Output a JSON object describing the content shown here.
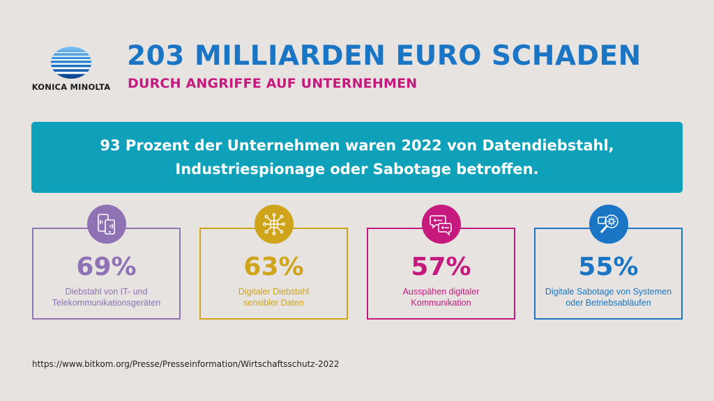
{
  "brand": {
    "name": "KONICA MINOLTA"
  },
  "header": {
    "title": "203 MILLIARDEN EURO SCHADEN",
    "subtitle": "DURCH ANGRIFFE AUF UNTERNEHMEN"
  },
  "banner": {
    "line1": "93 Prozent der Unternehmen waren 2022 von Datendiebstahl,",
    "line2": "Industriespionage oder Sabotage betroffen."
  },
  "cards": [
    {
      "value": "69%",
      "label_line1": "Diebstahl von IT- und",
      "label_line2": "Telekommunikationsgeräten",
      "icon": "phone-tablet-icon",
      "color": "#8e72b4"
    },
    {
      "value": "63%",
      "label_line1": "Digitaler Diebstahl",
      "label_line2": "sensibler Daten",
      "icon": "data-network-icon",
      "color": "#cfa41a"
    },
    {
      "value": "57%",
      "label_line1": "Ausspähen digitaler",
      "label_line2": "Kommunikation",
      "icon": "speech-bubbles-icon",
      "color": "#c5197d"
    },
    {
      "value": "55%",
      "label_line1": "Digitale Sabotage von Systemen",
      "label_line2": "oder Betriebsabläufen",
      "icon": "gear-magnifier-icon",
      "color": "#1a75c5"
    }
  ],
  "source": {
    "url": "https://www.bitkom.org/Presse/Presseinformation/Wirtschaftsschutz-2022"
  },
  "colors": {
    "background": "#e6e3e1",
    "banner": "#0fa1ba",
    "title": "#1a75c5",
    "subtitle": "#c5197d"
  }
}
